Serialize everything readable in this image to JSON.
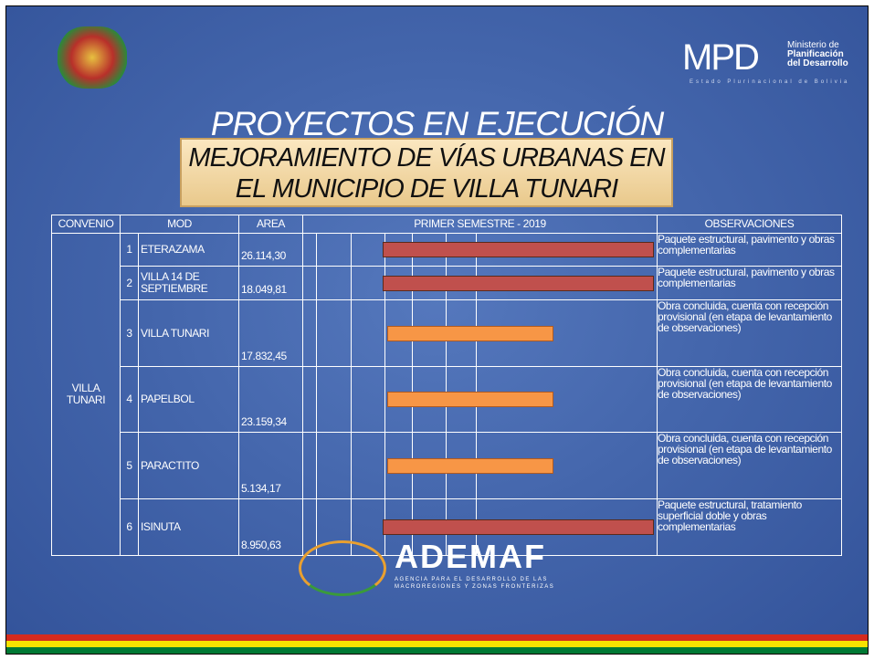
{
  "header": {
    "mark": "MPD",
    "ministry_lines": [
      "Ministerio de",
      "Planificación",
      "del Desarrollo"
    ],
    "state": "Estado Plurinacional de Bolivia"
  },
  "title": "PROYECTOS EN EJECUCIÓN",
  "subtitle_lines": [
    "MEJORAMIENTO DE VÍAS URBANAS EN",
    "EL MUNICIPIO DE VILLA TUNARI"
  ],
  "table": {
    "headers": [
      "CONVENIO",
      "MOD",
      "AREA",
      "PRIMER SEMESTRE - 2019",
      "OBSERVACIONES"
    ],
    "convenio": "VILLA TUNARI",
    "rows": [
      {
        "n": 1,
        "name": "ETERAZAMA",
        "area": "26.114,30",
        "obs": "Paquete estructural, pavimento y obras complementarias"
      },
      {
        "n": 2,
        "name": "VILLA 14 DE SEPTIEMBRE",
        "area": "18.049,81",
        "obs": "Paquete estructural, pavimento y obras complementarias"
      },
      {
        "n": 3,
        "name": "VILLA TUNARI",
        "area": "17.832,45",
        "obs": "Obra concluida, cuenta con recepción provisional (en etapa de levantamiento de observaciones)"
      },
      {
        "n": 4,
        "name": "PAPELBOL",
        "area": "23.159,34",
        "obs": "Obra concluida, cuenta con recepción provisional (en etapa de levantamiento de observaciones)"
      },
      {
        "n": 5,
        "name": "PARACTITO",
        "area": "5.134,17",
        "obs": "Obra concluida, cuenta con recepción provisional (en etapa de levantamiento de observaciones)"
      },
      {
        "n": 6,
        "name": "ISINUTA",
        "area": "8.950,63",
        "obs": "Paquete estructural, tratamiento superficial doble y obras complementarias"
      }
    ]
  },
  "footer": {
    "logo": "ADEMAF",
    "agency_lines": [
      "AGENCIA PARA EL DESARROLLO DE LAS",
      "MACROREGIONES Y ZONAS FRONTERIZAS"
    ]
  }
}
